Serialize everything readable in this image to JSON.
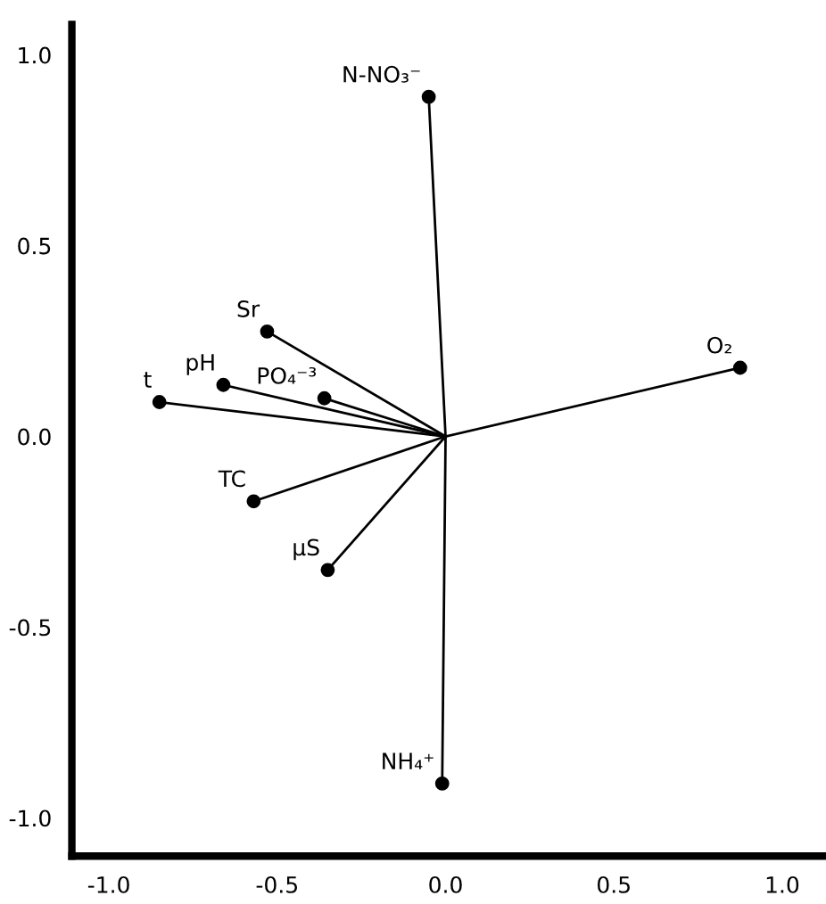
{
  "chart_data": {
    "type": "scatter",
    "xlim": [
      -1.11,
      1.13
    ],
    "ylim": [
      -1.1,
      1.08
    ],
    "xticks": [
      {
        "value": -1.0,
        "label": "-1.0"
      },
      {
        "value": -0.5,
        "label": "-0.5"
      },
      {
        "value": 0.0,
        "label": "0.0"
      },
      {
        "value": 0.5,
        "label": "0.5"
      },
      {
        "value": 1.0,
        "label": "1.0"
      }
    ],
    "yticks": [
      {
        "value": -1.0,
        "label": "-1.0"
      },
      {
        "value": -0.5,
        "label": "-0.5"
      },
      {
        "value": 0.0,
        "label": "0.0"
      },
      {
        "value": 0.5,
        "label": "0.5"
      },
      {
        "value": 1.0,
        "label": "1.0"
      }
    ],
    "grid": false,
    "legend": false,
    "series": [
      {
        "type": "line",
        "color": "#000000",
        "x": [
          -0.05,
          0,
          -0.01
        ],
        "values": [
          0.89,
          0,
          -0.91
        ]
      },
      {
        "type": "line",
        "color": "#000000",
        "x": [
          -0.85,
          0,
          0.875
        ],
        "values": [
          0.09,
          0,
          0.18
        ]
      },
      {
        "type": "line",
        "color": "#000000",
        "x": [
          0,
          -0.53
        ],
        "values": [
          0,
          0.275
        ]
      },
      {
        "type": "line",
        "color": "#000000",
        "x": [
          0,
          -0.66
        ],
        "values": [
          0,
          0.135
        ]
      },
      {
        "type": "line",
        "color": "#000000",
        "x": [
          0,
          -0.36
        ],
        "values": [
          0,
          0.1
        ]
      },
      {
        "type": "line",
        "color": "#000000",
        "x": [
          0,
          -0.57
        ],
        "values": [
          0,
          -0.17
        ]
      },
      {
        "type": "line",
        "color": "#000000",
        "x": [
          0,
          -0.35
        ],
        "values": [
          0,
          -0.35
        ]
      },
      {
        "color": "#000000",
        "marker": "circle",
        "x": [
          -0.05,
          0.875,
          -0.53,
          -0.66,
          -0.85,
          -0.36,
          -0.57,
          -0.35,
          -0.01
        ],
        "values": [
          0.89,
          0.18,
          0.275,
          0.135,
          0.09,
          0.1,
          -0.17,
          -0.35,
          -0.91
        ]
      }
    ],
    "annotations": [
      {
        "text": "N-NO₃⁻",
        "x": -0.05,
        "y": 0.89
      },
      {
        "text": "O₂",
        "x": 0.875,
        "y": 0.18
      },
      {
        "text": "Sr",
        "x": -0.53,
        "y": 0.275
      },
      {
        "text": "pH",
        "x": -0.66,
        "y": 0.135
      },
      {
        "text": "t",
        "x": -0.85,
        "y": 0.09
      },
      {
        "text": "PO₄⁻³",
        "x": -0.36,
        "y": 0.1
      },
      {
        "text": "TC",
        "x": -0.57,
        "y": -0.17
      },
      {
        "text": "µS",
        "x": -0.35,
        "y": -0.35
      },
      {
        "text": "NH₄⁺",
        "x": -0.01,
        "y": -0.91
      }
    ]
  }
}
